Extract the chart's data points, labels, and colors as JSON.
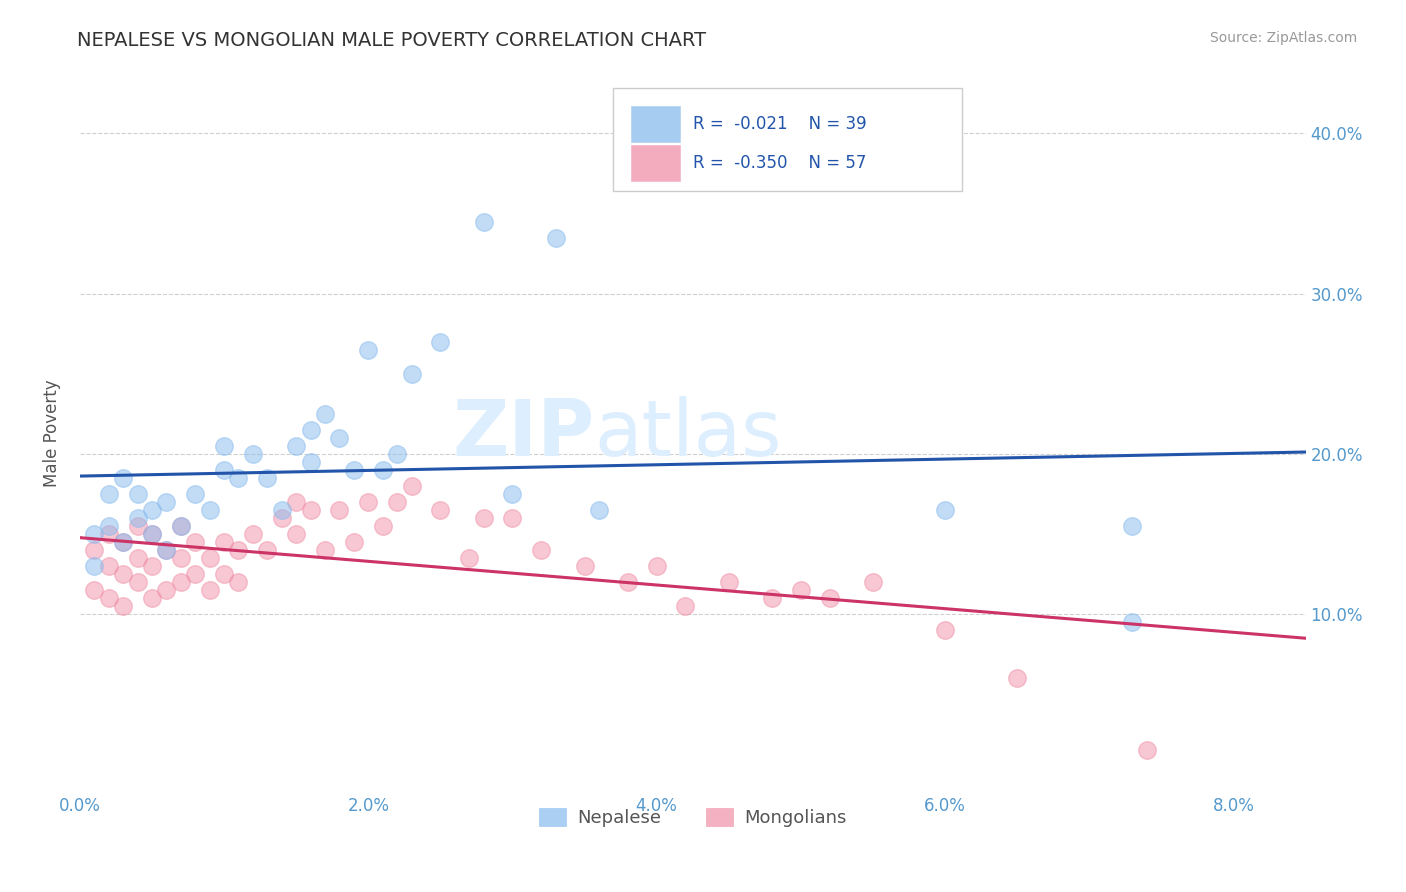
{
  "title": "NEPALESE VS MONGOLIAN MALE POVERTY CORRELATION CHART",
  "source": "Source: ZipAtlas.com",
  "ylabel": "Male Poverty",
  "y_ticks": [
    0.1,
    0.2,
    0.3,
    0.4
  ],
  "y_tick_labels": [
    "10.0%",
    "20.0%",
    "30.0%",
    "40.0%"
  ],
  "x_ticks": [
    0.0,
    0.02,
    0.04,
    0.06,
    0.08
  ],
  "x_tick_labels": [
    "0.0%",
    "2.0%",
    "4.0%",
    "6.0%",
    "8.0%"
  ],
  "xlim": [
    0.0,
    0.085
  ],
  "ylim": [
    -0.01,
    0.435
  ],
  "bg_color": "#ffffff",
  "grid_color": "#d0d0d0",
  "title_color": "#333333",
  "axis_label_color": "#555555",
  "tick_color": "#5599cc",
  "nepalese_color": "#88bbee",
  "mongolians_color": "#f090a8",
  "nepalese_line_color": "#2255aa",
  "mongolians_line_color": "#cc3366",
  "watermark_color": "#ddeeff",
  "right_tick_color": "#5599cc",
  "nepalese_scatter_x": [
    0.001,
    0.001,
    0.002,
    0.002,
    0.003,
    0.003,
    0.004,
    0.004,
    0.005,
    0.005,
    0.006,
    0.006,
    0.007,
    0.008,
    0.009,
    0.01,
    0.01,
    0.011,
    0.012,
    0.013,
    0.014,
    0.015,
    0.016,
    0.016,
    0.017,
    0.018,
    0.019,
    0.02,
    0.021,
    0.022,
    0.023,
    0.025,
    0.028,
    0.03,
    0.033,
    0.036,
    0.06,
    0.073,
    0.073
  ],
  "nepalese_scatter_y": [
    0.13,
    0.15,
    0.155,
    0.175,
    0.145,
    0.185,
    0.16,
    0.175,
    0.15,
    0.165,
    0.14,
    0.17,
    0.155,
    0.175,
    0.165,
    0.19,
    0.205,
    0.185,
    0.2,
    0.185,
    0.165,
    0.205,
    0.215,
    0.195,
    0.225,
    0.21,
    0.19,
    0.265,
    0.19,
    0.2,
    0.25,
    0.27,
    0.345,
    0.175,
    0.335,
    0.165,
    0.165,
    0.155,
    0.095
  ],
  "mongolians_scatter_x": [
    0.001,
    0.001,
    0.002,
    0.002,
    0.002,
    0.003,
    0.003,
    0.003,
    0.004,
    0.004,
    0.004,
    0.005,
    0.005,
    0.005,
    0.006,
    0.006,
    0.007,
    0.007,
    0.007,
    0.008,
    0.008,
    0.009,
    0.009,
    0.01,
    0.01,
    0.011,
    0.011,
    0.012,
    0.013,
    0.014,
    0.015,
    0.015,
    0.016,
    0.017,
    0.018,
    0.019,
    0.02,
    0.021,
    0.022,
    0.023,
    0.025,
    0.027,
    0.028,
    0.03,
    0.032,
    0.035,
    0.038,
    0.04,
    0.042,
    0.045,
    0.048,
    0.05,
    0.052,
    0.055,
    0.06,
    0.065,
    0.074
  ],
  "mongolians_scatter_y": [
    0.115,
    0.14,
    0.11,
    0.13,
    0.15,
    0.105,
    0.125,
    0.145,
    0.12,
    0.135,
    0.155,
    0.11,
    0.13,
    0.15,
    0.115,
    0.14,
    0.12,
    0.135,
    0.155,
    0.125,
    0.145,
    0.115,
    0.135,
    0.125,
    0.145,
    0.12,
    0.14,
    0.15,
    0.14,
    0.16,
    0.17,
    0.15,
    0.165,
    0.14,
    0.165,
    0.145,
    0.17,
    0.155,
    0.17,
    0.18,
    0.165,
    0.135,
    0.16,
    0.16,
    0.14,
    0.13,
    0.12,
    0.13,
    0.105,
    0.12,
    0.11,
    0.115,
    0.11,
    0.12,
    0.09,
    0.06,
    0.015
  ]
}
